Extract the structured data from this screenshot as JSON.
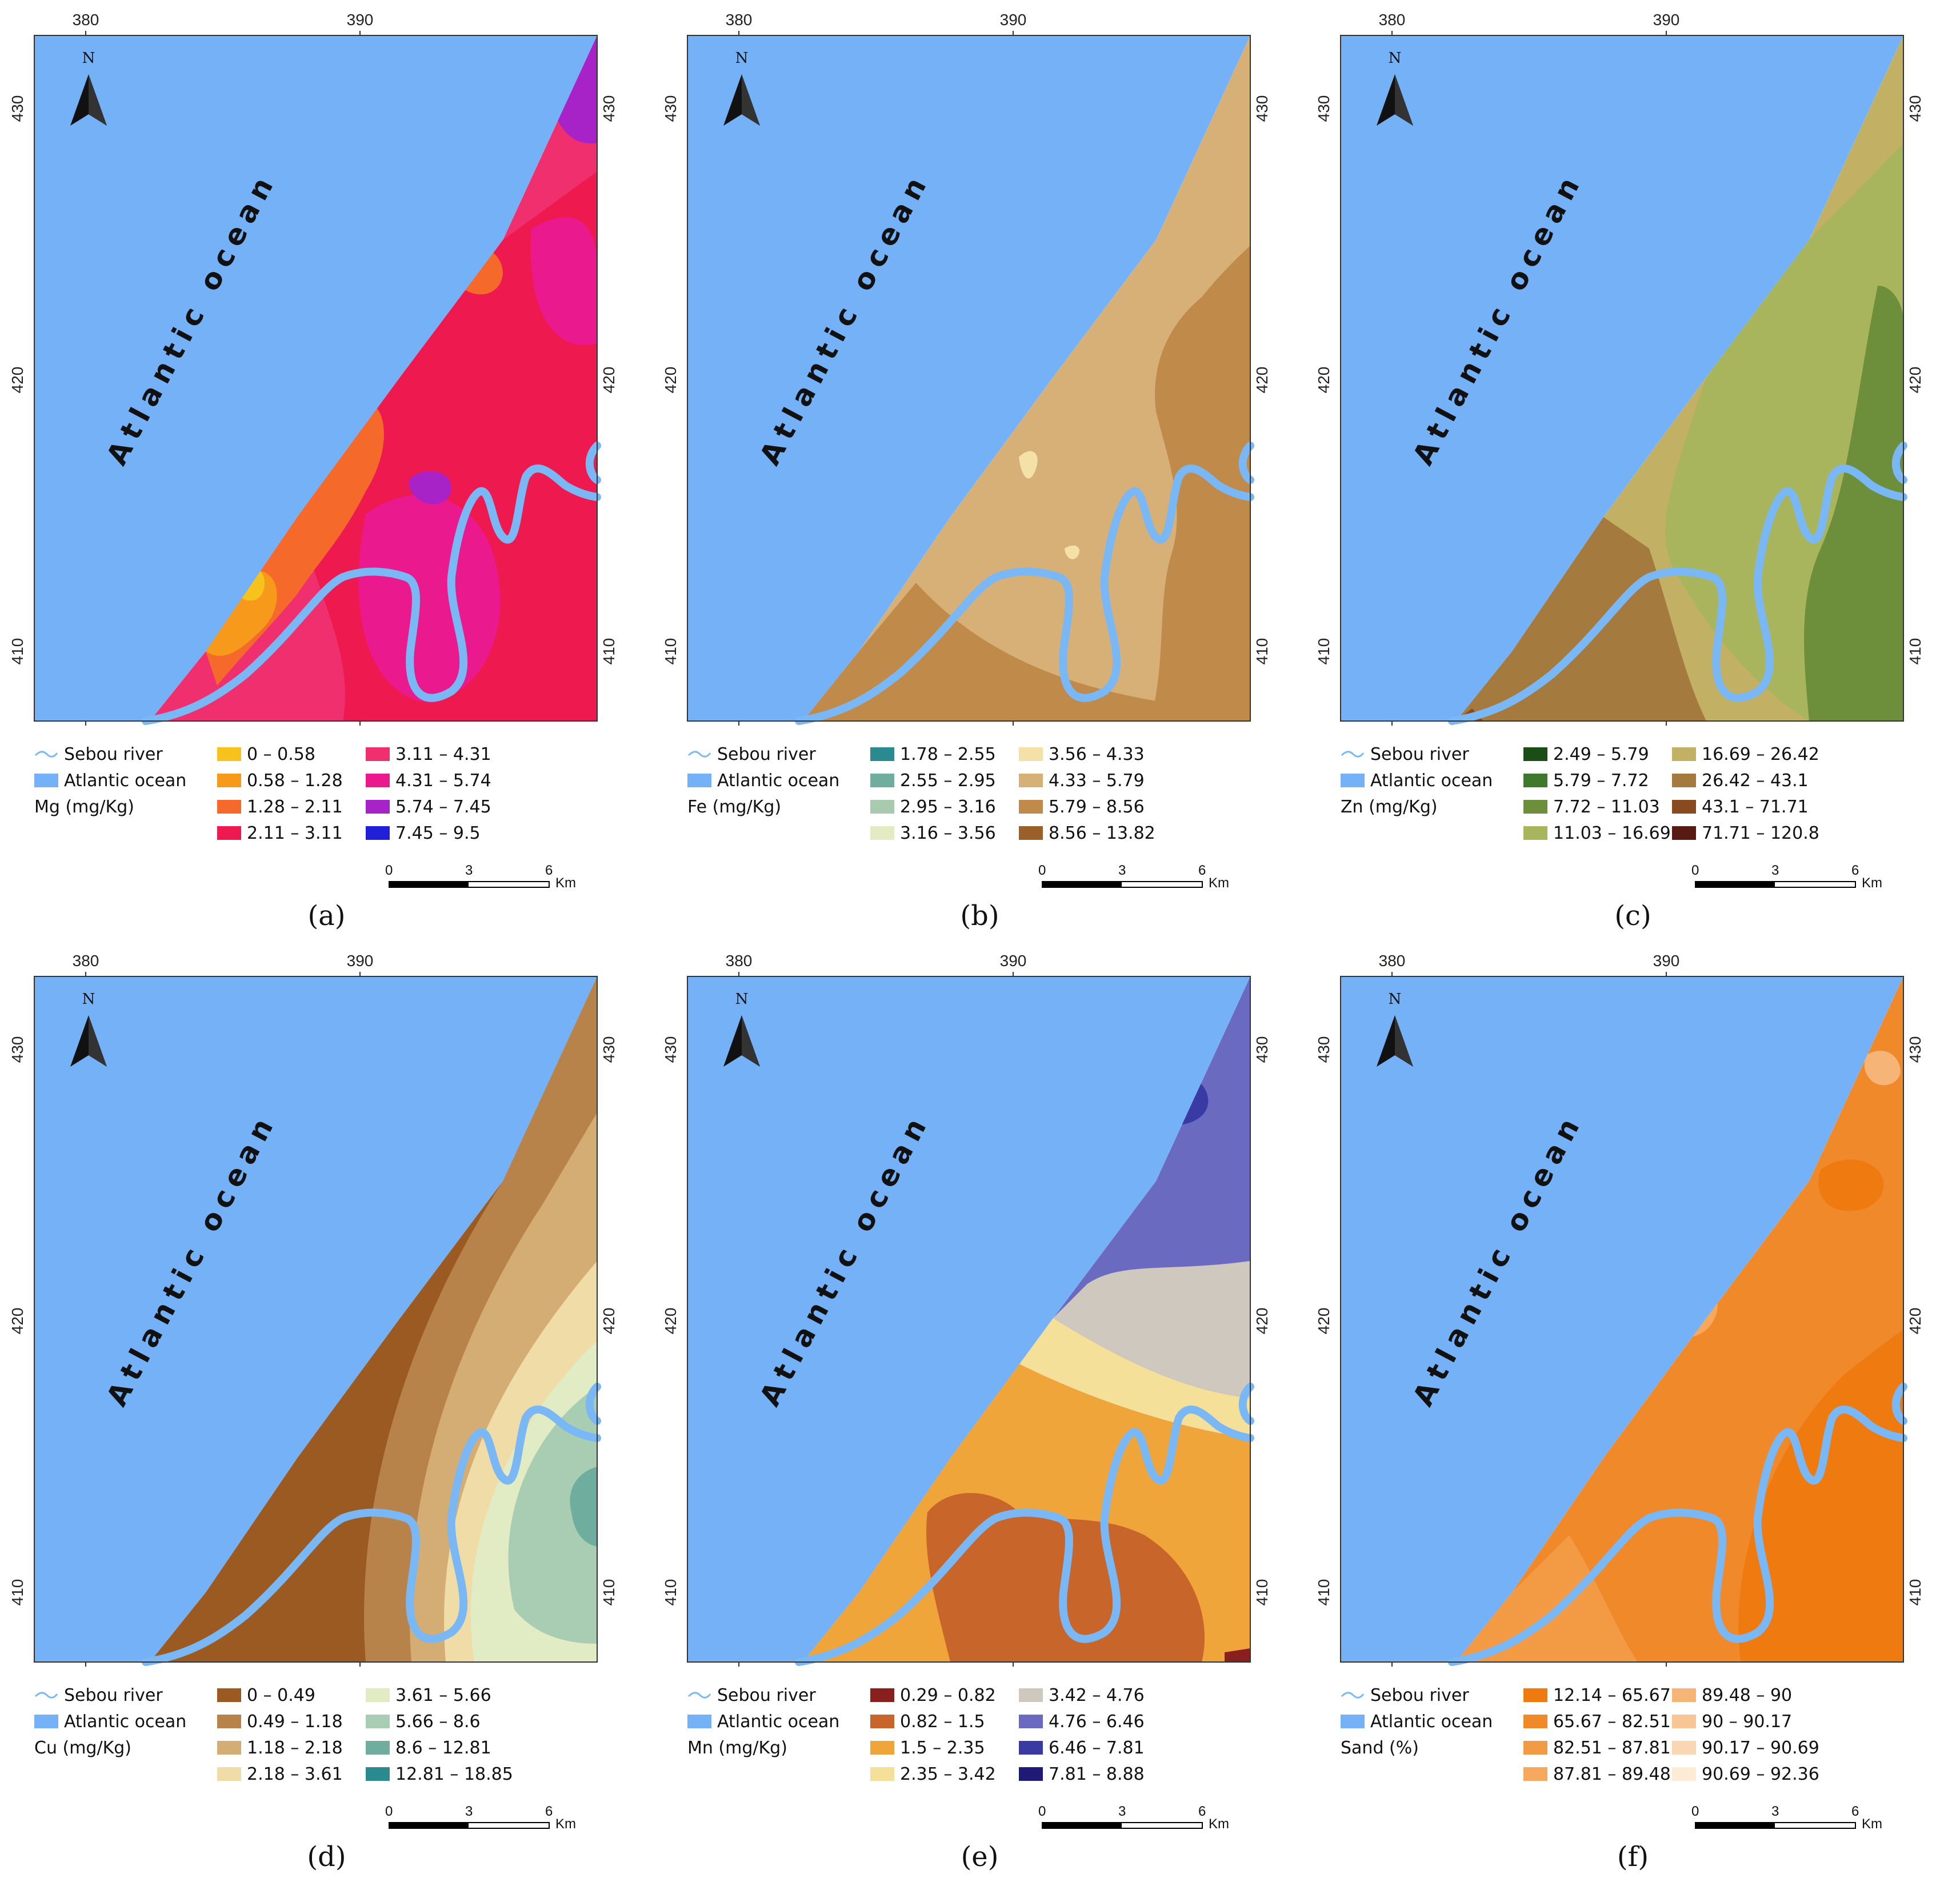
{
  "panels": [
    {
      "id": "a",
      "caption": "(a)",
      "x_ticks": [
        "380",
        "390"
      ],
      "y_ticks": [
        "430",
        "420",
        "410"
      ],
      "ocean_label": "Atlantic ocean",
      "north": "N",
      "legend_river": "Sebou river",
      "legend_ocean": "Atlantic ocean",
      "variable": "Mg (mg/Kg)",
      "classes": [
        {
          "label": "0 – 0.58",
          "color": "#f7c21b"
        },
        {
          "label": "0.58 – 1.28",
          "color": "#f79a1c"
        },
        {
          "label": "1.28 – 2.11",
          "color": "#f56a2b"
        },
        {
          "label": "2.11 – 3.11",
          "color": "#ee1a4f"
        },
        {
          "label": "3.11 – 4.31",
          "color": "#f0306e"
        },
        {
          "label": "4.31 – 5.74",
          "color": "#ea1a8e"
        },
        {
          "label": "5.74 – 7.45",
          "color": "#a723c8"
        },
        {
          "label": "7.45 – 9.5",
          "color": "#2020d8"
        }
      ],
      "scale": [
        "0",
        "3",
        "6",
        "Km"
      ]
    },
    {
      "id": "b",
      "caption": "(b)",
      "x_ticks": [
        "380",
        "390"
      ],
      "y_ticks": [
        "430",
        "420",
        "410"
      ],
      "ocean_label": "Atlantic ocean",
      "north": "N",
      "legend_river": "Sebou river",
      "legend_ocean": "Atlantic ocean",
      "variable": "Fe (mg/Kg)",
      "classes": [
        {
          "label": "1.78 – 2.55",
          "color": "#2b8a8f"
        },
        {
          "label": "2.55 – 2.95",
          "color": "#6fae9e"
        },
        {
          "label": "2.95 – 3.16",
          "color": "#a8cbb0"
        },
        {
          "label": "3.16 – 3.56",
          "color": "#e3ebc2"
        },
        {
          "label": "3.56 – 4.33",
          "color": "#f4e1a8"
        },
        {
          "label": "4.33 – 5.79",
          "color": "#d7b077"
        },
        {
          "label": "5.79 – 8.56",
          "color": "#c08a4a"
        },
        {
          "label": "8.56 – 13.82",
          "color": "#9b5f2a"
        }
      ],
      "scale": [
        "0",
        "3",
        "6",
        "Km"
      ]
    },
    {
      "id": "c",
      "caption": "(c)",
      "x_ticks": [
        "380",
        "390"
      ],
      "y_ticks": [
        "430",
        "420",
        "410"
      ],
      "ocean_label": "Atlantic ocean",
      "north": "N",
      "legend_river": "Sebou river",
      "legend_ocean": "Atlantic ocean",
      "variable": "Zn (mg/Kg)",
      "classes": [
        {
          "label": "2.49 – 5.79",
          "color": "#1b4d17"
        },
        {
          "label": "5.79 – 7.72",
          "color": "#3f7a2c"
        },
        {
          "label": "7.72 – 11.03",
          "color": "#6d8f3c"
        },
        {
          "label": "11.03 – 16.69",
          "color": "#a9b55c"
        },
        {
          "label": "16.69 – 26.42",
          "color": "#c2b065"
        },
        {
          "label": "26.42 – 43.1",
          "color": "#a57a3e"
        },
        {
          "label": "43.1 – 71.71",
          "color": "#8a4a20"
        },
        {
          "label": "71.71 – 120.8",
          "color": "#5a1a14"
        }
      ],
      "scale": [
        "0",
        "3",
        "6",
        "Km"
      ]
    },
    {
      "id": "d",
      "caption": "(d)",
      "x_ticks": [
        "380",
        "390"
      ],
      "y_ticks": [
        "430",
        "420",
        "410"
      ],
      "ocean_label": "Atlantic ocean",
      "north": "N",
      "legend_river": "Sebou river",
      "legend_ocean": "Atlantic ocean",
      "variable": "Cu (mg/Kg)",
      "classes": [
        {
          "label": "0 – 0.49",
          "color": "#9a5a22"
        },
        {
          "label": "0.49 – 1.18",
          "color": "#b7834a"
        },
        {
          "label": "1.18 – 2.18",
          "color": "#d4ad74"
        },
        {
          "label": "2.18 – 3.61",
          "color": "#efdca7"
        },
        {
          "label": "3.61 – 5.66",
          "color": "#e2ecc4"
        },
        {
          "label": "5.66 – 8.6",
          "color": "#a9cdb2"
        },
        {
          "label": "8.6 – 12.81",
          "color": "#6fae9e"
        },
        {
          "label": "12.81 – 18.85",
          "color": "#2b8a8f"
        }
      ],
      "scale": [
        "0",
        "3",
        "6",
        "Km"
      ]
    },
    {
      "id": "e",
      "caption": "(e)",
      "x_ticks": [
        "380",
        "390"
      ],
      "y_ticks": [
        "430",
        "420",
        "410"
      ],
      "ocean_label": "Atlantic ocean",
      "north": "N",
      "legend_river": "Sebou river",
      "legend_ocean": "Atlantic ocean",
      "variable": "Mn (mg/Kg)",
      "classes": [
        {
          "label": "0.29 – 0.82",
          "color": "#8a1f1f"
        },
        {
          "label": "0.82 – 1.5",
          "color": "#c8652a"
        },
        {
          "label": "1.5 – 2.35",
          "color": "#f0a53a"
        },
        {
          "label": "2.35 – 3.42",
          "color": "#f5e09a"
        },
        {
          "label": "3.42 – 4.76",
          "color": "#cfc8bf"
        },
        {
          "label": "4.76 – 6.46",
          "color": "#6a6ac0"
        },
        {
          "label": "6.46 – 7.81",
          "color": "#3a3aa5"
        },
        {
          "label": "7.81 – 8.88",
          "color": "#1e1a75"
        }
      ],
      "scale": [
        "0",
        "3",
        "6",
        "Km"
      ]
    },
    {
      "id": "f",
      "caption": "(f)",
      "x_ticks": [
        "380",
        "390"
      ],
      "y_ticks": [
        "430",
        "420",
        "410"
      ],
      "ocean_label": "Atlantic ocean",
      "north": "N",
      "legend_river": "Sebou river",
      "legend_ocean": "Atlantic ocean",
      "variable": "Sand (%)",
      "classes": [
        {
          "label": "12.14 – 65.67",
          "color": "#ee7a10"
        },
        {
          "label": "65.67 – 82.51",
          "color": "#f0892a"
        },
        {
          "label": "82.51 – 87.81",
          "color": "#f39a44"
        },
        {
          "label": "87.81 – 89.48",
          "color": "#f5a85e"
        },
        {
          "label": "89.48 – 90",
          "color": "#f6b477"
        },
        {
          "label": "90 – 90.17",
          "color": "#f8c694"
        },
        {
          "label": "90.17 – 90.69",
          "color": "#fad7b2"
        },
        {
          "label": "90.69 – 92.36",
          "color": "#fdebd6"
        }
      ],
      "scale": [
        "0",
        "3",
        "6",
        "Km"
      ]
    }
  ],
  "ocean_color": "#74b1f7",
  "river_color": "#7ab8f5"
}
